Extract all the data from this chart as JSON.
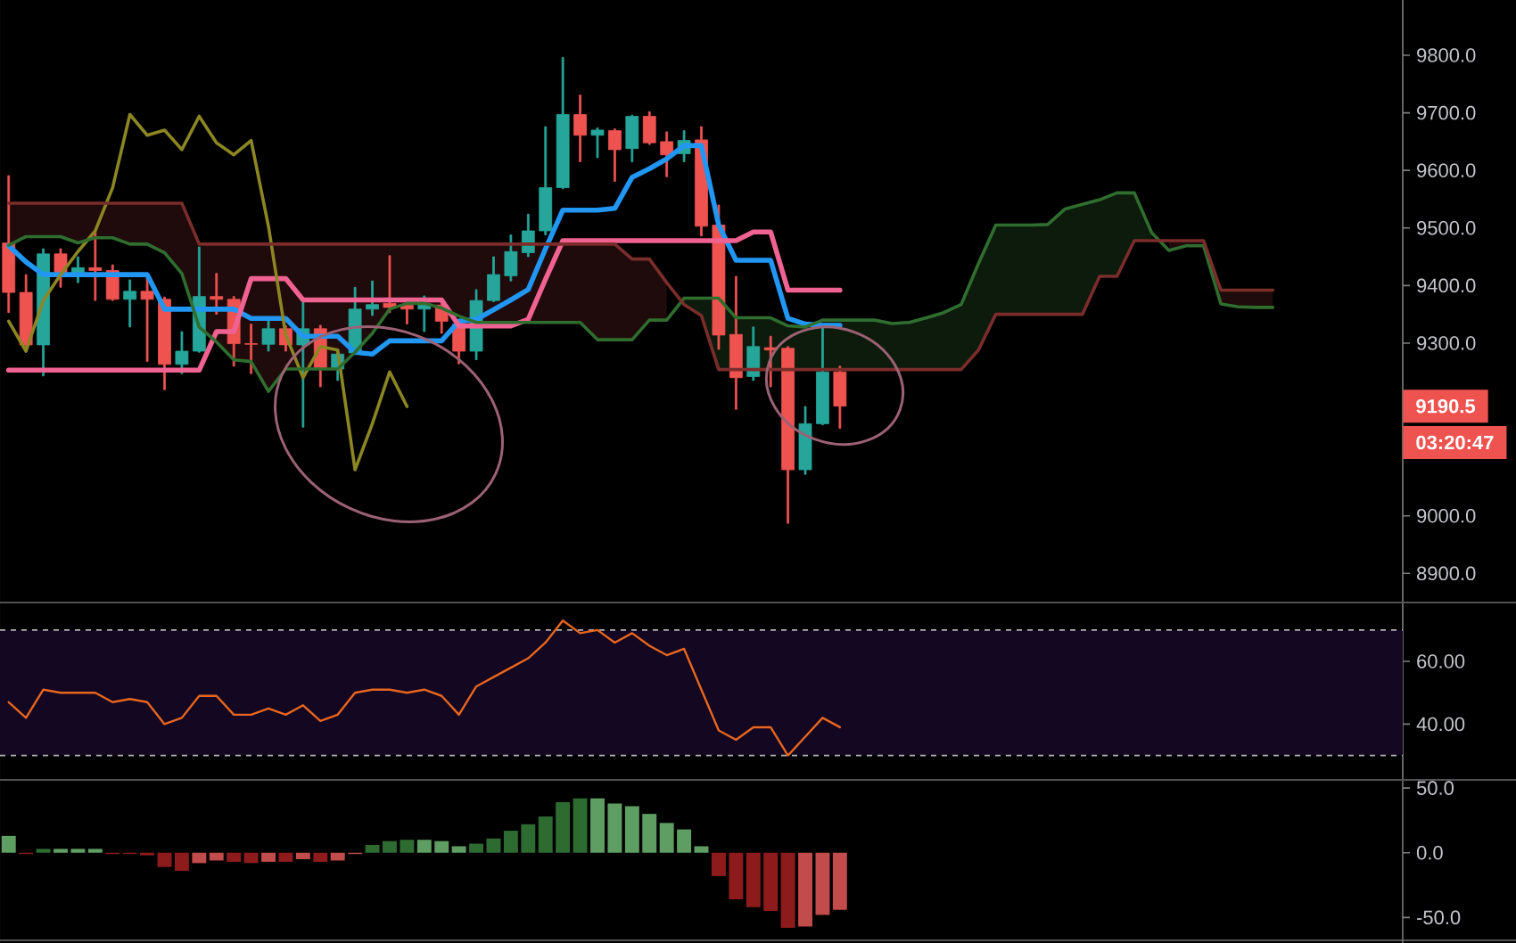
{
  "chart_data": [
    {
      "type": "candlestick",
      "categories": [
        null,
        null,
        null,
        null,
        null,
        null,
        null,
        null,
        null,
        null,
        null,
        null,
        null,
        null,
        null,
        null,
        null,
        null,
        null,
        null,
        null,
        null,
        null,
        null,
        null,
        null,
        null,
        null,
        null,
        null,
        null,
        null,
        null,
        null,
        null,
        null,
        null,
        null,
        null,
        null,
        null,
        null,
        null,
        null,
        null,
        null,
        null,
        null,
        null,
        null,
        null,
        null,
        null,
        null,
        null,
        null,
        null,
        null,
        null,
        null,
        null,
        null,
        null,
        null,
        null,
        null,
        null,
        null,
        null,
        null,
        null,
        null,
        null,
        null,
        null,
        null,
        null,
        null,
        null,
        null,
        null
      ],
      "ohlc": [
        [
          9474,
          9591,
          9353,
          9388
        ],
        [
          9388,
          9419,
          9294,
          9297
        ],
        [
          9297,
          9464,
          9243,
          9455
        ],
        [
          9455,
          9464,
          9397,
          9423
        ],
        [
          9423,
          9450,
          9405,
          9431
        ],
        [
          9431,
          9493,
          9374,
          9426
        ],
        [
          9426,
          9436,
          9374,
          9376
        ],
        [
          9376,
          9410,
          9328,
          9390
        ],
        [
          9390,
          9419,
          9268,
          9376
        ],
        [
          9376,
          9380,
          9219,
          9263
        ],
        [
          9263,
          9320,
          9247,
          9286
        ],
        [
          9286,
          9467,
          9284,
          9381
        ],
        [
          9381,
          9421,
          9350,
          9376
        ],
        [
          9376,
          9381,
          9260,
          9299
        ],
        [
          9299,
          9333,
          9247,
          9298
        ],
        [
          9298,
          9340,
          9286,
          9325
        ],
        [
          9325,
          9330,
          9286,
          9297
        ],
        [
          9297,
          9371,
          9154,
          9325
        ],
        [
          9325,
          9331,
          9224,
          9255
        ],
        [
          9255,
          9285,
          9235,
          9281
        ],
        [
          9283,
          9397,
          9280,
          9359
        ],
        [
          9359,
          9408,
          9348,
          9367
        ],
        [
          9369,
          9452,
          9353,
          9362
        ],
        [
          9366,
          9370,
          9333,
          9359
        ],
        [
          9359,
          9382,
          9320,
          9369
        ],
        [
          9366,
          9373,
          9317,
          9338
        ],
        [
          9333,
          9338,
          9264,
          9286
        ],
        [
          9286,
          9393,
          9271,
          9374
        ],
        [
          9374,
          9450,
          9372,
          9419
        ],
        [
          9417,
          9488,
          9408,
          9459
        ],
        [
          9457,
          9524,
          9450,
          9495
        ],
        [
          9495,
          9676,
          9488,
          9570
        ],
        [
          9570,
          9796,
          9568,
          9697
        ],
        [
          9697,
          9731,
          9615,
          9661
        ],
        [
          9661,
          9674,
          9622,
          9670
        ],
        [
          9669,
          9672,
          9581,
          9636
        ],
        [
          9638,
          9696,
          9615,
          9694
        ],
        [
          9694,
          9702,
          9645,
          9648
        ],
        [
          9650,
          9667,
          9589,
          9627
        ],
        [
          9629,
          9669,
          9615,
          9652
        ],
        [
          9653,
          9676,
          9486,
          9503
        ],
        [
          9505,
          9540,
          9289,
          9314
        ],
        [
          9315,
          9416,
          9185,
          9240
        ],
        [
          9242,
          9328,
          9235,
          9294
        ],
        [
          9292,
          9312,
          9224,
          9288
        ],
        [
          9291,
          9294,
          8987,
          9080
        ],
        [
          9080,
          9190,
          9072,
          9160
        ],
        [
          9160,
          9328,
          9158,
          9250
        ],
        [
          9250,
          9260,
          9152,
          9190.5
        ],
        null,
        null,
        null,
        null,
        null,
        null,
        null,
        null,
        null,
        null,
        null,
        null,
        null,
        null,
        null,
        null,
        null,
        null,
        null,
        null,
        null,
        null,
        null,
        null,
        null,
        null,
        null,
        null,
        null,
        null,
        null,
        null
      ],
      "colors": [
        "#ef5350",
        "#ef5350",
        "#26a69a",
        "#ef5350",
        "#26a69a",
        "#ef5350",
        "#ef5350",
        "#26a69a",
        "#ef5350",
        "#ef5350",
        "#26a69a",
        "#26a69a",
        "#ef5350",
        "#ef5350",
        "#ef5350",
        "#26a69a",
        "#ef5350",
        "#26a69a",
        "#ef5350",
        "#26a69a",
        "#26a69a",
        "#26a69a",
        "#ef5350",
        "#ef5350",
        "#26a69a",
        "#ef5350",
        "#ef5350",
        "#26a69a",
        "#26a69a",
        "#26a69a",
        "#26a69a",
        "#26a69a",
        "#26a69a",
        "#ef5350",
        "#26a69a",
        "#ef5350",
        "#26a69a",
        "#ef5350",
        "#ef5350",
        "#26a69a",
        "#ef5350",
        "#ef5350",
        "#ef5350",
        "#26a69a",
        "#ef5350",
        "#ef5350",
        "#26a69a",
        "#26a69a",
        "#ef5350",
        null,
        null,
        null,
        null,
        null,
        null,
        null,
        null,
        null,
        null,
        null,
        null,
        null,
        null,
        null,
        null,
        null,
        null,
        null,
        null,
        null,
        null,
        null,
        null,
        null,
        null,
        null,
        null,
        null,
        null,
        null,
        null
      ],
      "series": [
        {
          "type": "line",
          "color": "#2196f3",
          "values": [
            9469,
            9441,
            9419,
            9419,
            9419,
            9419,
            9419,
            9419,
            9419,
            9359,
            9359,
            9359,
            9359,
            9359,
            9343,
            9343,
            9343,
            9312,
            9312,
            9312,
            9284,
            9281,
            9304,
            9304,
            9304,
            9304,
            9338,
            9341,
            9358,
            9375,
            9393,
            9464,
            9531,
            9531,
            9531,
            9534,
            9588,
            9603,
            9620,
            9643,
            9643,
            9505,
            9444,
            9444,
            9444,
            9343,
            9333,
            9331,
            9331,
            null,
            null,
            null,
            null,
            null,
            null,
            null,
            null,
            null,
            null,
            null,
            null,
            null,
            null,
            null,
            null,
            null,
            null,
            null,
            null,
            null,
            null,
            null,
            null,
            null,
            null,
            null,
            null,
            null,
            null,
            null,
            null
          ]
        },
        {
          "type": "line",
          "color": "#f06292",
          "values": [
            9253,
            9253,
            9253,
            9253,
            9253,
            9253,
            9253,
            9253,
            9253,
            9253,
            9253,
            9253,
            9320,
            9320,
            9412,
            9412,
            9412,
            9375,
            9375,
            9375,
            9375,
            9375,
            9375,
            9375,
            9375,
            9375,
            9330,
            9330,
            9330,
            9330,
            9341,
            9411,
            9478,
            9478,
            9478,
            9478,
            9478,
            9478,
            9478,
            9478,
            9478,
            9478,
            9478,
            9493,
            9493,
            9392,
            9392,
            9392,
            9392,
            null,
            null,
            null,
            null,
            null,
            null,
            null,
            null,
            null,
            null,
            null,
            null,
            null,
            null,
            null,
            null,
            null,
            null,
            null,
            null,
            null,
            null,
            null,
            null,
            null,
            null,
            null,
            null,
            null,
            null,
            null,
            null
          ]
        },
        {
          "type": "line",
          "color": "#8c8623",
          "values": [
            9338,
            9286,
            9374,
            9419,
            9459,
            9495,
            9570,
            9697,
            9661,
            9670,
            9636,
            9694,
            9648,
            9627,
            9652,
            9503,
            9314,
            9240,
            9294,
            9288,
            9080,
            9160,
            9250,
            9190,
            null,
            null,
            null,
            null,
            null,
            null,
            null,
            null,
            null,
            null,
            null,
            null,
            null,
            null,
            null,
            null,
            null,
            null,
            null,
            null,
            null,
            null,
            null,
            null,
            null,
            null,
            null,
            null,
            null,
            null,
            null,
            null,
            null,
            null,
            null,
            null,
            null,
            null,
            null,
            null,
            null,
            null,
            null,
            null,
            null,
            null,
            null,
            null,
            null,
            null,
            null,
            null,
            null,
            null,
            null,
            null,
            null
          ]
        },
        {
          "type": "line",
          "color": "#2f6e2f",
          "values": [
            9470,
            9485,
            9485,
            9485,
            9474,
            9483,
            9483,
            9472,
            9472,
            9457,
            9421,
            9328,
            9302,
            9271,
            9268,
            9216,
            9255,
            9255,
            9255,
            9255,
            9284,
            9317,
            9359,
            9369,
            9369,
            9361,
            9347,
            9336,
            9336,
            9336,
            9336,
            9336,
            9336,
            9336,
            9306,
            9306,
            9306,
            9340,
            9340,
            9378,
            9378,
            9378,
            9344,
            9344,
            9344,
            9330,
            9328,
            9340,
            9340,
            9340,
            9340,
            9334,
            9336,
            9344,
            9353,
            9367,
            9438,
            9505,
            9505,
            9505,
            9506,
            9533,
            9541,
            9549,
            9561,
            9561,
            9492,
            9461,
            9469,
            9469,
            9368,
            9363,
            9362,
            9362,
            null,
            null,
            null,
            null,
            null,
            null,
            null
          ],
          "lower": [
            null,
            null,
            null,
            null,
            null,
            null,
            null,
            null,
            null,
            null,
            null,
            null,
            null,
            null,
            null,
            null,
            null,
            null,
            null,
            null,
            null,
            null,
            null,
            null,
            null,
            null,
            null,
            null,
            null,
            null,
            null,
            null,
            null,
            null,
            null,
            null,
            null,
            null,
            null,
            9367,
            9348,
            9254,
            9254,
            9254,
            9254,
            9254,
            9254,
            9254,
            9254,
            9254,
            9254,
            9254,
            9254,
            9254,
            9254,
            9254,
            9288,
            9350,
            9350,
            9350,
            9350,
            9350,
            9350,
            9416,
            9416,
            9478,
            9478,
            null,
            null,
            null,
            null,
            null,
            null,
            null,
            null,
            null,
            null,
            null,
            null,
            null,
            null
          ],
          "upper": [
            null,
            null,
            null,
            null,
            null,
            null,
            null,
            null,
            null,
            null,
            null,
            null,
            null,
            null,
            null,
            null,
            null,
            null,
            null,
            null,
            null,
            null,
            null,
            null,
            null,
            null,
            null,
            null,
            null,
            null,
            null,
            null,
            null,
            null,
            null,
            null,
            null,
            null,
            null,
            9378,
            9378,
            9378,
            9344,
            9344,
            9344,
            9330,
            9328,
            9340,
            9340,
            9340,
            9340,
            9334,
            9336,
            9344,
            9353,
            9367,
            9438,
            9505,
            9505,
            9505,
            9506,
            9533,
            9541,
            9549,
            9561,
            9561,
            9492,
            null,
            null,
            null,
            null,
            null,
            null,
            null,
            null,
            null,
            null,
            null,
            null,
            null,
            null
          ]
        },
        {
          "type": "line",
          "color": "#7b2d2b",
          "values": [
            9543,
            9543,
            9543,
            9543,
            9543,
            9543,
            9543,
            9543,
            9543,
            9543,
            9543,
            9472,
            9472,
            9472,
            9472,
            9472,
            9472,
            9472,
            9472,
            9472,
            9472,
            9472,
            9472,
            9472,
            9472,
            9472,
            9472,
            9472,
            9472,
            9472,
            9472,
            9472,
            9472,
            9472,
            9472,
            9472,
            9446,
            9446,
            9405,
            9367,
            9348,
            9254,
            9254,
            9254,
            9254,
            9254,
            9254,
            9254,
            9254,
            9254,
            9254,
            9254,
            9254,
            9254,
            9254,
            9254,
            9288,
            9350,
            9350,
            9350,
            9350,
            9350,
            9350,
            9416,
            9416,
            9478,
            9478,
            9478,
            9478,
            9478,
            9392,
            9392,
            9392,
            9392,
            null,
            null,
            null,
            null,
            null,
            null,
            null
          ],
          "lower": [
            9470,
            9485,
            9485,
            9485,
            9474,
            9483,
            9483,
            9472,
            9472,
            9457,
            9421,
            9328,
            9302,
            9271,
            9268,
            9216,
            9255,
            9255,
            9255,
            9255,
            9284,
            9317,
            9359,
            9369,
            9369,
            9361,
            9347,
            9336,
            9336,
            9336,
            9336,
            9336,
            9336,
            9336,
            9306,
            9306,
            9306,
            9340,
            9340,
            null,
            null,
            null,
            null,
            null,
            null,
            null,
            null,
            null,
            null,
            null,
            null,
            null,
            null,
            null,
            null,
            null,
            null,
            null,
            null,
            null,
            null,
            null,
            null,
            null,
            null,
            null,
            null,
            9461,
            9469,
            9469,
            9368,
            9363,
            9362,
            9362,
            null,
            null,
            null,
            null,
            null,
            null,
            null
          ],
          "upper": [
            9543,
            9543,
            9543,
            9543,
            9543,
            9543,
            9543,
            9543,
            9543,
            9543,
            9543,
            9472,
            9472,
            9472,
            9472,
            9472,
            9472,
            9472,
            9472,
            9472,
            9472,
            9472,
            9472,
            9472,
            9472,
            9472,
            9472,
            9472,
            9472,
            9472,
            9472,
            9472,
            9472,
            9472,
            9472,
            9472,
            9446,
            9446,
            9405,
            null,
            null,
            null,
            null,
            null,
            null,
            null,
            null,
            null,
            null,
            null,
            null,
            null,
            null,
            null,
            null,
            null,
            null,
            null,
            null,
            null,
            null,
            null,
            null,
            null,
            null,
            null,
            null,
            9478,
            9478,
            9478,
            9392,
            9392,
            9392,
            9392,
            null,
            null,
            null,
            null,
            null,
            null,
            null
          ]
        }
      ],
      "ylim": [
        8851,
        9896
      ],
      "yticks": [
        {
          "value": 8900,
          "label": "8900.0"
        },
        {
          "value": 9000,
          "label": "9000.0"
        },
        {
          "value": 9300,
          "label": "9300.0"
        },
        {
          "value": 9400,
          "label": "9400.0"
        },
        {
          "value": 9500,
          "label": "9500.0"
        },
        {
          "value": 9600,
          "label": "9600.0"
        },
        {
          "value": 9700,
          "label": "9700.0"
        },
        {
          "value": 9800,
          "label": "9800.0"
        }
      ],
      "tick_labels": "y",
      "annotations": [
        "9190.5",
        "03:20:47"
      ]
    },
    {
      "type": "line",
      "categories": [
        null,
        null,
        null,
        null,
        null,
        null,
        null,
        null,
        null,
        null,
        null,
        null,
        null,
        null,
        null,
        null,
        null,
        null,
        null,
        null,
        null,
        null,
        null,
        null,
        null,
        null,
        null,
        null,
        null,
        null,
        null,
        null,
        null,
        null,
        null,
        null,
        null,
        null,
        null,
        null,
        null,
        null,
        null,
        null,
        null,
        null,
        null,
        null,
        null,
        null,
        null,
        null,
        null,
        null,
        null,
        null,
        null,
        null,
        null,
        null,
        null,
        null,
        null,
        null,
        null,
        null,
        null,
        null,
        null,
        null,
        null,
        null,
        null,
        null,
        null,
        null,
        null,
        null,
        null,
        null,
        null
      ],
      "values": [
        47,
        42,
        51,
        50,
        50,
        50,
        47,
        48,
        47,
        40,
        42,
        49,
        49,
        43,
        43,
        45,
        43,
        46,
        41,
        43,
        50,
        51,
        51,
        50,
        51,
        49,
        43,
        52,
        55,
        58,
        61,
        66,
        73,
        69,
        70,
        66,
        69,
        65,
        62,
        64,
        51,
        38,
        35,
        39,
        39,
        30,
        36,
        42,
        39,
        null,
        null,
        null,
        null,
        null,
        null,
        null,
        null,
        null,
        null,
        null,
        null,
        null,
        null,
        null,
        null,
        null,
        null,
        null,
        null,
        null,
        null,
        null,
        null,
        null,
        null,
        null,
        null,
        null,
        null,
        null,
        null
      ],
      "color": "#e8661e",
      "ylim": [
        22.5,
        78.5
      ],
      "yticks": [
        {
          "value": 40,
          "label": "40.00"
        },
        {
          "value": 60,
          "label": "60.00"
        }
      ],
      "tick_labels": "y",
      "bands": [
        {
          "axis": "y",
          "from": 30,
          "to": 70,
          "color": "#130722"
        }
      ],
      "ref_lines": [
        {
          "axis": "y",
          "value": 70,
          "color": "#b4b4b4",
          "line_style": "dashed"
        },
        {
          "axis": "y",
          "value": 30,
          "color": "#b4b4b4",
          "line_style": "dashed"
        }
      ]
    },
    {
      "type": "bar",
      "categories": [
        null,
        null,
        null,
        null,
        null,
        null,
        null,
        null,
        null,
        null,
        null,
        null,
        null,
        null,
        null,
        null,
        null,
        null,
        null,
        null,
        null,
        null,
        null,
        null,
        null,
        null,
        null,
        null,
        null,
        null,
        null,
        null,
        null,
        null,
        null,
        null,
        null,
        null,
        null,
        null,
        null,
        null,
        null,
        null,
        null,
        null,
        null,
        null,
        null,
        null,
        null,
        null,
        null,
        null,
        null,
        null,
        null,
        null,
        null,
        null,
        null,
        null,
        null,
        null,
        null,
        null,
        null,
        null,
        null,
        null,
        null,
        null,
        null,
        null,
        null,
        null,
        null,
        null,
        null,
        null,
        null
      ],
      "values": [
        13,
        -1,
        3,
        3,
        3,
        3,
        -1,
        -1,
        -2,
        -11,
        -14,
        -8,
        -6,
        -7,
        -8,
        -7,
        -7,
        -5,
        -7,
        -6,
        -1,
        6,
        9,
        10,
        10,
        9,
        5,
        7,
        11,
        17,
        22,
        28,
        39,
        42,
        42,
        38,
        36,
        30,
        23,
        18,
        5,
        -18,
        -36,
        -42,
        -45,
        -58,
        -57,
        -48,
        -44,
        null,
        null,
        null,
        null,
        null,
        null,
        null,
        null,
        null,
        null,
        null,
        null,
        null,
        null,
        null,
        null,
        null,
        null,
        null,
        null,
        null,
        null,
        null,
        null,
        null,
        null,
        null,
        null,
        null,
        null,
        null,
        null
      ],
      "colors": [
        "#5f9e62",
        "#8e1b1b",
        "#2e6b30",
        "#5f9e62",
        "#5f9e62",
        "#5f9e62",
        "#8e1b1b",
        "#8e1b1b",
        "#8e1b1b",
        "#8e1b1b",
        "#8e1b1b",
        "#c24b4b",
        "#c24b4b",
        "#8e1b1b",
        "#8e1b1b",
        "#c24b4b",
        "#8e1b1b",
        "#c24b4b",
        "#8e1b1b",
        "#c24b4b",
        "#c24b4b",
        "#2e6b30",
        "#2e6b30",
        "#2e6b30",
        "#5f9e62",
        "#5f9e62",
        "#5f9e62",
        "#2e6b30",
        "#2e6b30",
        "#2e6b30",
        "#2e6b30",
        "#2e6b30",
        "#2e6b30",
        "#2e6b30",
        "#5f9e62",
        "#5f9e62",
        "#5f9e62",
        "#5f9e62",
        "#5f9e62",
        "#5f9e62",
        "#5f9e62",
        "#8e1b1b",
        "#8e1b1b",
        "#8e1b1b",
        "#8e1b1b",
        "#8e1b1b",
        "#c24b4b",
        "#c24b4b",
        "#c24b4b",
        null,
        null,
        null,
        null,
        null,
        null,
        null,
        null,
        null,
        null,
        null,
        null,
        null,
        null,
        null,
        null,
        null,
        null,
        null,
        null,
        null,
        null,
        null,
        null,
        null,
        null,
        null,
        null,
        null,
        null,
        null,
        null
      ],
      "ylim": [
        -69.7,
        55.6
      ],
      "yticks": [
        {
          "value": 50,
          "label": "50.0"
        },
        {
          "value": 0,
          "label": "0.0"
        },
        {
          "value": -50,
          "label": "-50.0"
        }
      ],
      "tick_labels": "y"
    }
  ]
}
